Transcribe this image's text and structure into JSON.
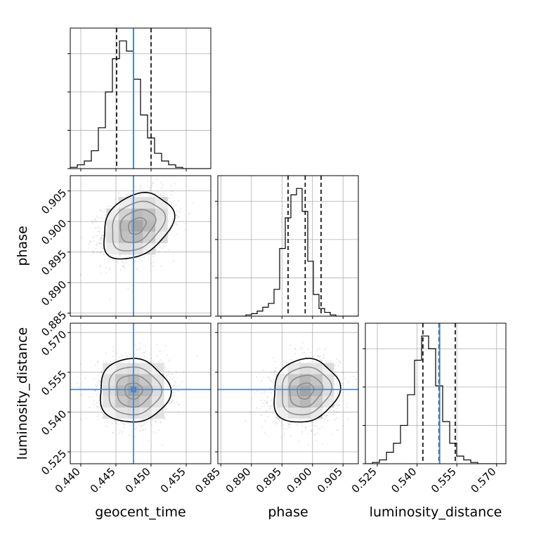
{
  "chart_data": {
    "type": "corner",
    "parameters": [
      "geocent_time",
      "phase",
      "luminosity_distance"
    ],
    "axis_labels": [
      "geocent_time",
      "phase",
      "luminosity_distance"
    ],
    "ranges": [
      [
        0.4385,
        0.4585
      ],
      [
        0.8845,
        0.9075
      ],
      [
        0.5205,
        0.5735
      ]
    ],
    "ticks": [
      {
        "values": [
          0.44,
          0.445,
          0.45,
          0.455
        ],
        "labels": [
          "0.440",
          "0.445",
          "0.450",
          "0.455"
        ]
      },
      {
        "values": [
          0.885,
          0.89,
          0.895,
          0.9,
          0.905
        ],
        "labels": [
          "0.885",
          "0.890",
          "0.895",
          "0.900",
          "0.905"
        ]
      },
      {
        "values": [
          0.525,
          0.54,
          0.555,
          0.57
        ],
        "labels": [
          "0.525",
          "0.540",
          "0.555",
          "0.570"
        ]
      }
    ],
    "truths": [
      0.4475,
      null,
      0.5485
    ],
    "truth_color": "#4a86c8",
    "quantiles": [
      [
        0.4451,
        0.4475,
        0.45
      ],
      [
        0.896,
        0.8988,
        0.9014
      ],
      [
        0.5422,
        0.5483,
        0.5544
      ]
    ],
    "histograms": [
      {
        "values": [
          1,
          3,
          6,
          14,
          32,
          60,
          86,
          100,
          92,
          70,
          42,
          24,
          12,
          6,
          3,
          1,
          0,
          0,
          0,
          0
        ]
      },
      {
        "values": [
          0,
          0,
          0,
          0,
          0,
          1,
          2,
          4,
          7,
          10,
          21,
          53,
          77,
          95,
          100,
          82,
          43,
          17,
          6,
          3,
          1,
          0,
          0,
          0,
          0
        ]
      },
      {
        "values": [
          0,
          1,
          3,
          9,
          16,
          30,
          54,
          81,
          100,
          90,
          61,
          33,
          16,
          6,
          3,
          1,
          0,
          0,
          0,
          0
        ]
      }
    ],
    "pairs": [
      {
        "x": 0,
        "y": 1,
        "center": [
          0.448,
          0.8993
        ],
        "sigma": [
          0.0025,
          0.0027
        ],
        "rho": 0.3
      },
      {
        "x": 0,
        "y": 2,
        "center": [
          0.4475,
          0.548
        ],
        "sigma": [
          0.0025,
          0.006
        ],
        "rho": 0.0
      },
      {
        "x": 1,
        "y": 2,
        "center": [
          0.8988,
          0.548
        ],
        "sigma": [
          0.0027,
          0.006
        ],
        "rho": 0.12
      }
    ],
    "grid": true
  }
}
